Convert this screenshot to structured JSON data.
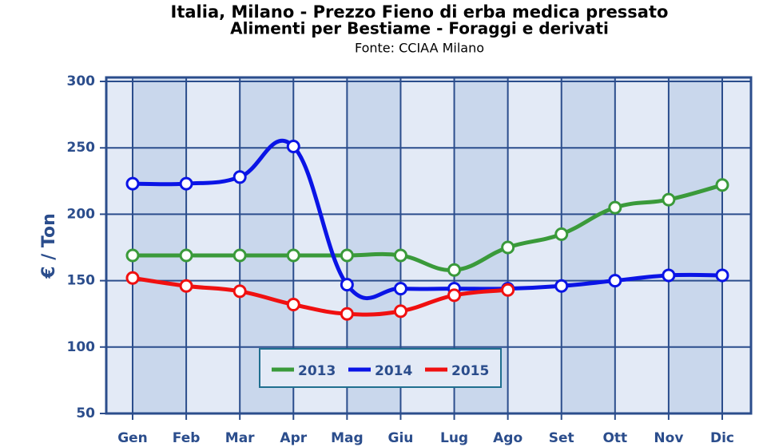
{
  "chart_data": {
    "type": "line",
    "title": "Italia, Milano - Prezzo Fieno di erba medica pressato",
    "subtitle": "Alimenti per Bestiame - Foraggi e derivati",
    "source": "Fonte: CCIAA Milano",
    "y_label": "€ / Ton",
    "categories": [
      "Gen",
      "Feb",
      "Mar",
      "Apr",
      "Mag",
      "Giu",
      "Lug",
      "Ago",
      "Set",
      "Ott",
      "Nov",
      "Dic"
    ],
    "series": [
      {
        "name": "2013",
        "color": "#3a9a3a",
        "values": [
          169,
          169,
          169,
          169,
          169,
          169,
          158,
          175,
          185,
          205,
          211,
          222
        ]
      },
      {
        "name": "2014",
        "color": "#0a14e6",
        "values": [
          223,
          223,
          228,
          251,
          147,
          144,
          144,
          144,
          146,
          150,
          154,
          154
        ]
      },
      {
        "name": "2015",
        "color": "#f01010",
        "values": [
          152,
          146,
          142,
          132,
          125,
          127,
          139,
          143,
          null,
          null,
          null,
          null
        ]
      }
    ],
    "ylim": [
      50,
      300
    ],
    "yticks": [
      50,
      100,
      150,
      200,
      250,
      300
    ],
    "grid": true
  }
}
